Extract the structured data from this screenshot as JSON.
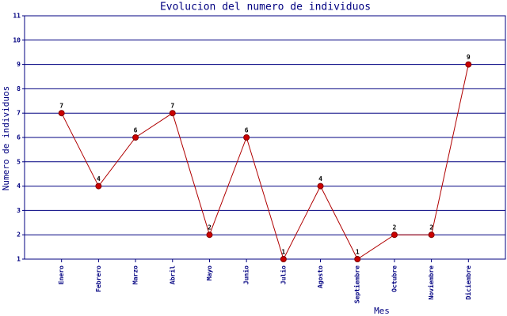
{
  "chart_data": {
    "type": "line",
    "title": "Evolucion del numero de individuos",
    "x_label": "Mes",
    "y_label": "Numero de individuos",
    "categories": [
      "Enero",
      "Febrero",
      "Marzo",
      "Abril",
      "Mayo",
      "Junio",
      "Julio",
      "Agosto",
      "Septiembre",
      "Octubre",
      "Noviembre",
      "Diciembre"
    ],
    "values": [
      7,
      4,
      6,
      7,
      2,
      6,
      1,
      4,
      1,
      2,
      2,
      9
    ],
    "color": "#b00000",
    "marker_color": "#cc0000",
    "grid_color": "#000080",
    "ylim": [
      1,
      11
    ],
    "yticks": [
      1,
      2,
      3,
      4,
      5,
      6,
      7,
      8,
      9,
      10,
      11
    ],
    "grid": true
  }
}
